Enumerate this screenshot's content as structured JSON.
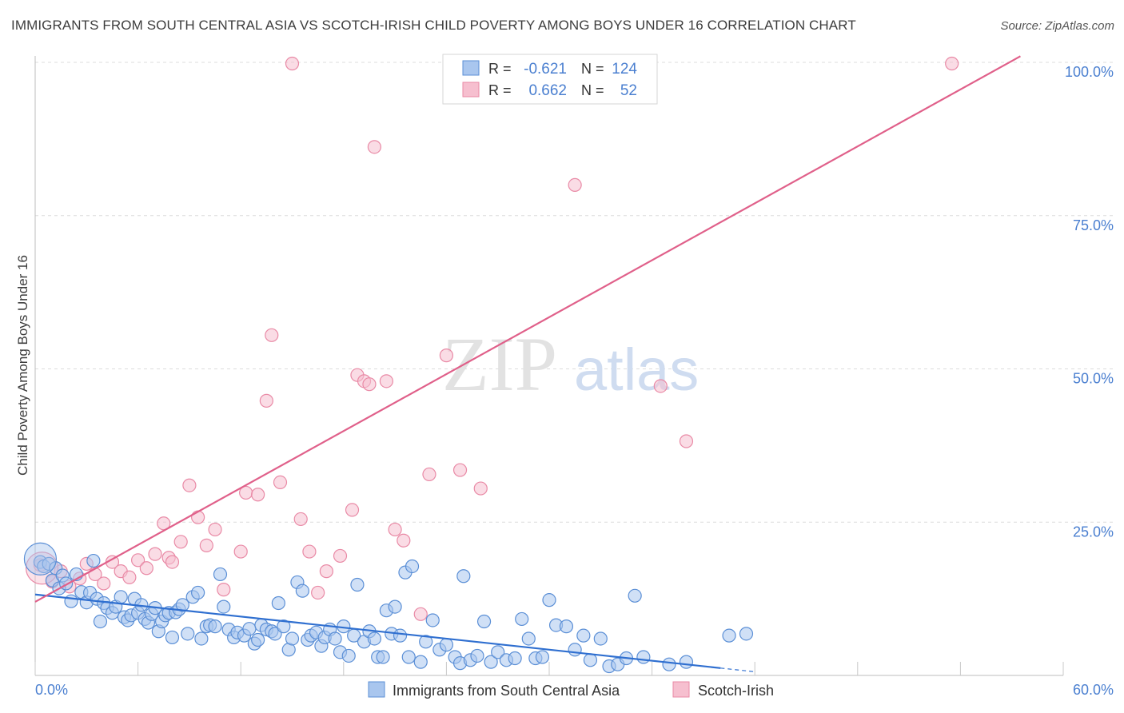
{
  "title": "IMMIGRANTS FROM SOUTH CENTRAL ASIA VS SCOTCH-IRISH CHILD POVERTY AMONG BOYS UNDER 16 CORRELATION CHART",
  "source": "Source: ZipAtlas.com",
  "watermark": {
    "zip": "ZIP",
    "atlas": "atlas"
  },
  "colors": {
    "blue_fill": "#a9c6ee",
    "blue_stroke": "#5b8fd6",
    "blue_line": "#2f6fd0",
    "pink_fill": "#f6bfcf",
    "pink_stroke": "#e98aa6",
    "pink_line": "#e0608a",
    "axis_text": "#4a7fd0",
    "grid": "#dcdcdc"
  },
  "stats_legend": {
    "rows": [
      {
        "r_label": "R =",
        "r_value": "-0.621",
        "n_label": "N =",
        "n_value": "124",
        "series": "blue"
      },
      {
        "r_label": "R =",
        "r_value": "0.662",
        "n_label": "N =",
        "n_value": "52",
        "series": "pink"
      }
    ]
  },
  "bottom_legend": [
    {
      "label": "Immigrants from South Central Asia",
      "series": "blue"
    },
    {
      "label": "Scotch-Irish",
      "series": "pink"
    }
  ],
  "chart_data": {
    "type": "scatter",
    "title": "IMMIGRANTS FROM SOUTH CENTRAL ASIA VS SCOTCH-IRISH CHILD POVERTY AMONG BOYS UNDER 16 CORRELATION CHART",
    "xlabel": "",
    "ylabel": "Child Poverty Among Boys Under 16",
    "xlim": [
      0,
      60
    ],
    "ylim": [
      0,
      100
    ],
    "x_tick_labels": [
      "0.0%",
      "60.0%"
    ],
    "y_ticks": [
      25,
      50,
      75,
      100
    ],
    "y_tick_labels": [
      "25.0%",
      "50.0%",
      "75.0%",
      "100.0%"
    ],
    "grid": true,
    "series": [
      {
        "name": "Immigrants from South Central Asia",
        "color": "blue",
        "trend": {
          "x0": 0,
          "y0": 13.2,
          "x1": 40,
          "y1": 1.2,
          "dash_x1": 42,
          "dash_y1": 0.6
        },
        "points": [
          [
            0.3,
            18.5
          ],
          [
            0.5,
            17.8
          ],
          [
            0.8,
            18.2
          ],
          [
            1.0,
            15.5
          ],
          [
            1.2,
            17.5
          ],
          [
            1.4,
            14.2
          ],
          [
            1.6,
            16.3
          ],
          [
            1.8,
            15.0
          ],
          [
            2.1,
            12.1
          ],
          [
            2.4,
            16.5
          ],
          [
            2.7,
            13.6
          ],
          [
            3.0,
            11.9
          ],
          [
            3.2,
            13.5
          ],
          [
            3.4,
            18.7
          ],
          [
            3.6,
            12.5
          ],
          [
            3.8,
            8.8
          ],
          [
            4.0,
            11.8
          ],
          [
            4.2,
            11.0
          ],
          [
            4.5,
            10.2
          ],
          [
            4.7,
            11.2
          ],
          [
            5.0,
            12.8
          ],
          [
            5.2,
            9.5
          ],
          [
            5.4,
            9.0
          ],
          [
            5.6,
            9.8
          ],
          [
            5.8,
            12.5
          ],
          [
            6.0,
            10.2
          ],
          [
            6.2,
            11.5
          ],
          [
            6.4,
            9.2
          ],
          [
            6.6,
            8.6
          ],
          [
            6.8,
            10.0
          ],
          [
            7.0,
            11.0
          ],
          [
            7.2,
            7.2
          ],
          [
            7.4,
            8.8
          ],
          [
            7.6,
            9.8
          ],
          [
            7.8,
            10.2
          ],
          [
            8.0,
            6.2
          ],
          [
            8.2,
            10.3
          ],
          [
            8.4,
            10.8
          ],
          [
            8.6,
            11.5
          ],
          [
            8.9,
            6.8
          ],
          [
            9.2,
            12.8
          ],
          [
            9.5,
            13.5
          ],
          [
            9.7,
            6.0
          ],
          [
            10.0,
            8.0
          ],
          [
            10.2,
            8.2
          ],
          [
            10.5,
            8.0
          ],
          [
            10.8,
            16.5
          ],
          [
            11.0,
            11.2
          ],
          [
            11.3,
            7.5
          ],
          [
            11.6,
            6.2
          ],
          [
            11.8,
            7.0
          ],
          [
            12.2,
            6.5
          ],
          [
            12.5,
            7.6
          ],
          [
            12.8,
            5.2
          ],
          [
            13.0,
            5.8
          ],
          [
            13.2,
            8.2
          ],
          [
            13.5,
            7.5
          ],
          [
            13.8,
            7.2
          ],
          [
            14.0,
            6.8
          ],
          [
            14.2,
            11.8
          ],
          [
            14.5,
            8.0
          ],
          [
            14.8,
            4.2
          ],
          [
            15.0,
            6.0
          ],
          [
            15.3,
            15.2
          ],
          [
            15.6,
            13.8
          ],
          [
            15.9,
            5.8
          ],
          [
            16.1,
            6.5
          ],
          [
            16.4,
            7.0
          ],
          [
            16.7,
            4.8
          ],
          [
            16.9,
            6.2
          ],
          [
            17.2,
            7.5
          ],
          [
            17.5,
            6.0
          ],
          [
            17.8,
            3.8
          ],
          [
            18.0,
            8.0
          ],
          [
            18.3,
            3.2
          ],
          [
            18.6,
            6.5
          ],
          [
            18.8,
            14.8
          ],
          [
            19.2,
            5.5
          ],
          [
            19.5,
            7.2
          ],
          [
            19.8,
            6.0
          ],
          [
            20.0,
            3.0
          ],
          [
            20.3,
            3.0
          ],
          [
            20.5,
            10.6
          ],
          [
            20.8,
            6.8
          ],
          [
            21.0,
            11.2
          ],
          [
            21.3,
            6.5
          ],
          [
            21.6,
            16.8
          ],
          [
            21.8,
            3.0
          ],
          [
            22.0,
            17.8
          ],
          [
            22.5,
            2.2
          ],
          [
            22.8,
            5.5
          ],
          [
            23.2,
            9.0
          ],
          [
            23.6,
            4.2
          ],
          [
            24.0,
            5.0
          ],
          [
            24.5,
            3.0
          ],
          [
            24.8,
            2.0
          ],
          [
            25.0,
            16.2
          ],
          [
            25.4,
            2.5
          ],
          [
            25.8,
            3.2
          ],
          [
            26.2,
            8.8
          ],
          [
            26.6,
            2.2
          ],
          [
            27.0,
            3.8
          ],
          [
            27.5,
            2.5
          ],
          [
            28.0,
            2.8
          ],
          [
            28.4,
            9.2
          ],
          [
            28.8,
            6.0
          ],
          [
            29.2,
            2.8
          ],
          [
            29.6,
            3.0
          ],
          [
            30.0,
            12.3
          ],
          [
            30.4,
            8.2
          ],
          [
            31.0,
            8.0
          ],
          [
            31.5,
            4.2
          ],
          [
            32.0,
            6.5
          ],
          [
            32.4,
            2.5
          ],
          [
            33.0,
            6.0
          ],
          [
            33.5,
            1.5
          ],
          [
            34.0,
            1.8
          ],
          [
            34.5,
            2.8
          ],
          [
            35.0,
            13.0
          ],
          [
            35.5,
            3.0
          ],
          [
            37.0,
            1.8
          ],
          [
            38.0,
            2.2
          ],
          [
            40.5,
            6.5
          ],
          [
            41.5,
            6.8
          ]
        ]
      },
      {
        "name": "Scotch-Irish",
        "color": "pink",
        "trend": {
          "x0": 0,
          "y0": 12.0,
          "x1": 57.5,
          "y1": 101.0
        },
        "points": [
          [
            0.3,
            18.0
          ],
          [
            1.0,
            15.3
          ],
          [
            1.5,
            17.0
          ],
          [
            2.0,
            14.5
          ],
          [
            2.6,
            15.8
          ],
          [
            3.0,
            18.2
          ],
          [
            3.5,
            16.5
          ],
          [
            4.0,
            15.0
          ],
          [
            4.5,
            18.5
          ],
          [
            5.0,
            17.0
          ],
          [
            5.5,
            16.0
          ],
          [
            6.0,
            18.8
          ],
          [
            6.5,
            17.5
          ],
          [
            7.0,
            19.8
          ],
          [
            7.5,
            24.8
          ],
          [
            7.8,
            19.2
          ],
          [
            8.0,
            18.5
          ],
          [
            8.5,
            21.8
          ],
          [
            9.0,
            31.0
          ],
          [
            9.5,
            25.8
          ],
          [
            10.0,
            21.2
          ],
          [
            10.5,
            23.8
          ],
          [
            11.0,
            14.0
          ],
          [
            12.0,
            20.2
          ],
          [
            12.3,
            29.8
          ],
          [
            13.0,
            29.5
          ],
          [
            13.5,
            44.8
          ],
          [
            13.8,
            55.5
          ],
          [
            14.3,
            31.5
          ],
          [
            15.0,
            99.8
          ],
          [
            15.5,
            25.5
          ],
          [
            16.0,
            20.2
          ],
          [
            16.5,
            13.5
          ],
          [
            17.0,
            17.0
          ],
          [
            17.8,
            19.5
          ],
          [
            18.5,
            27.0
          ],
          [
            18.8,
            49.0
          ],
          [
            19.2,
            48.0
          ],
          [
            19.5,
            47.5
          ],
          [
            19.8,
            86.2
          ],
          [
            20.5,
            48.0
          ],
          [
            21.0,
            23.8
          ],
          [
            21.5,
            22.0
          ],
          [
            22.5,
            10.0
          ],
          [
            23.0,
            32.8
          ],
          [
            24.0,
            52.2
          ],
          [
            24.8,
            33.5
          ],
          [
            26.0,
            30.5
          ],
          [
            31.5,
            80.0
          ],
          [
            36.5,
            47.2
          ],
          [
            38.0,
            38.2
          ],
          [
            53.5,
            99.8
          ]
        ]
      }
    ]
  }
}
